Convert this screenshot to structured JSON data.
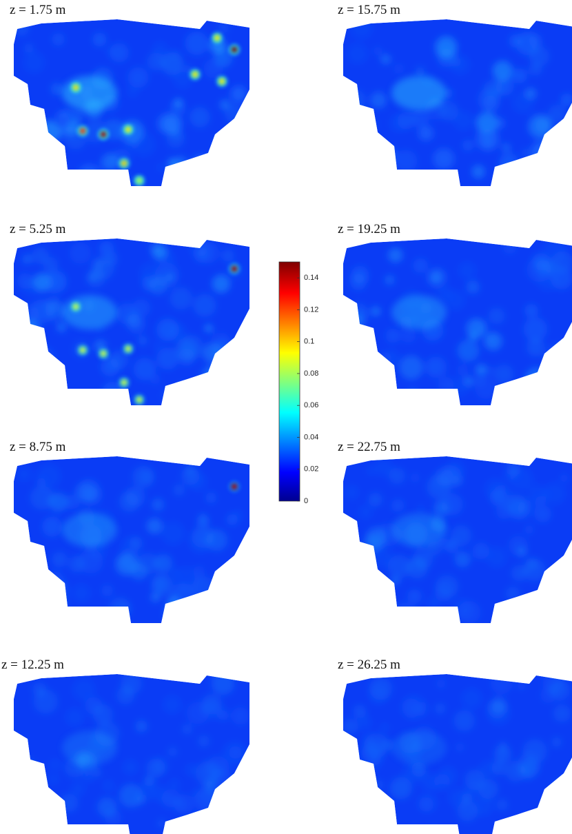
{
  "chart_data": {
    "type": "heatmap",
    "panels": [
      {
        "title": "z = 1.75 m"
      },
      {
        "title": "z = 15.75 m"
      },
      {
        "title": "z = 5.25 m"
      },
      {
        "title": "z = 19.25 m"
      },
      {
        "title": "z = 8.75 m"
      },
      {
        "title": "z = 22.75 m"
      },
      {
        "title": "z = 12.25 m"
      },
      {
        "title": "z = 26.25 m"
      }
    ],
    "colorbar": {
      "lim": [
        0,
        0.15
      ],
      "ticks": [
        0,
        0.02,
        0.04,
        0.06,
        0.08,
        0.1,
        0.12,
        0.14
      ],
      "colormap": "jet"
    }
  }
}
